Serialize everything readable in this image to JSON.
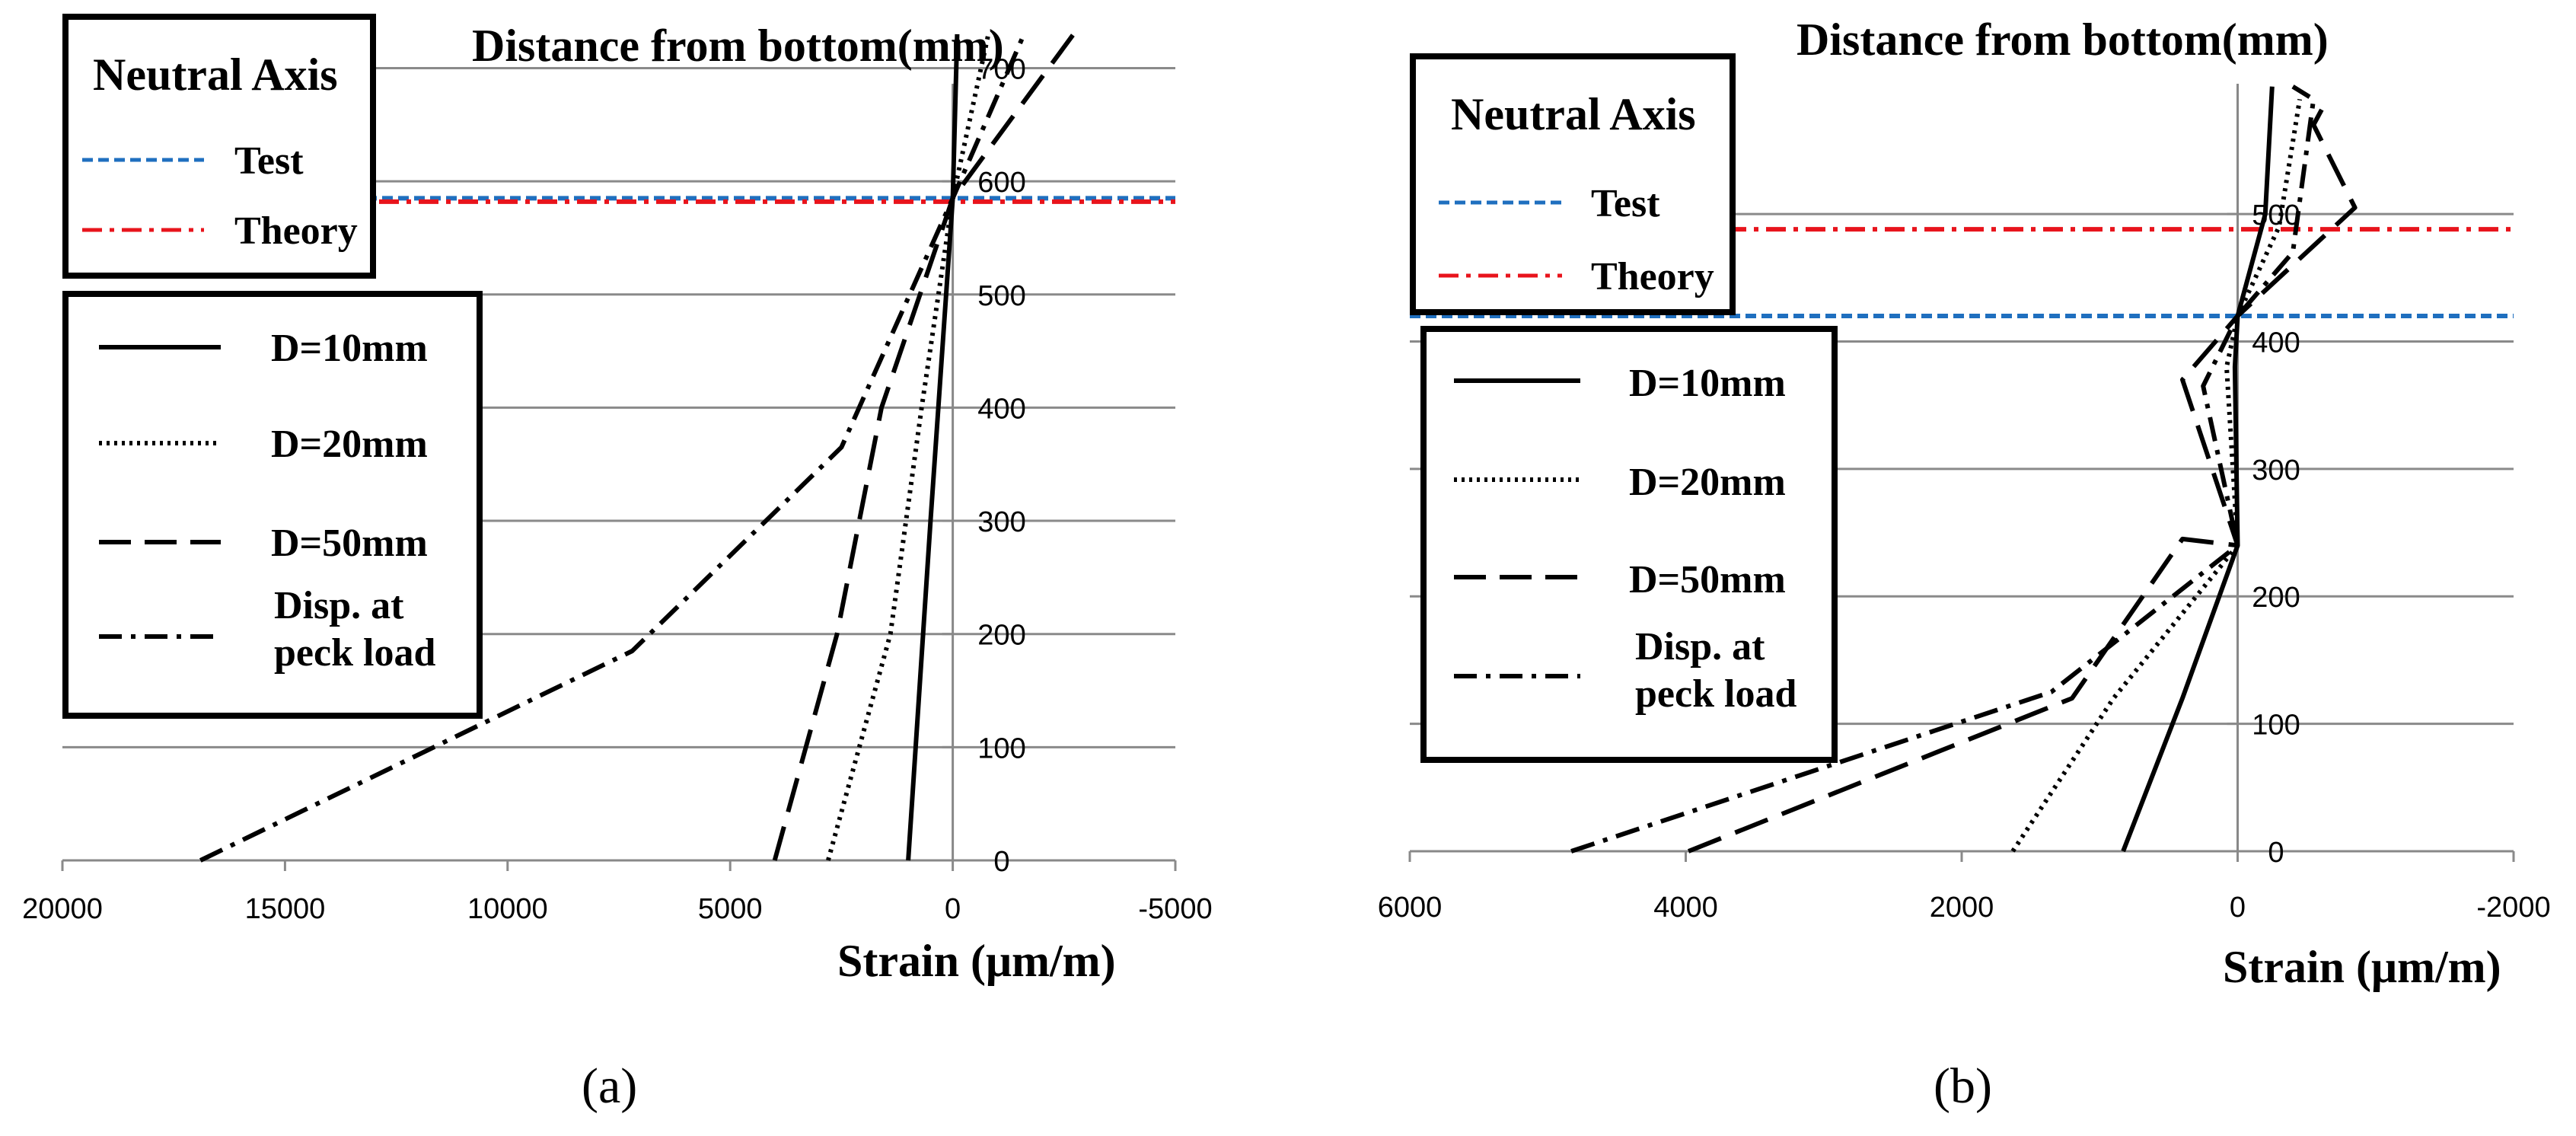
{
  "chart_data": [
    {
      "type": "line",
      "panel_label": "(a)",
      "title": "Distance from bottom(mm)",
      "xlabel": "Strain (μm/m)",
      "ylabel": "Distance from bottom(mm)",
      "xlim": [
        20000,
        -5000
      ],
      "ylim": [
        0,
        700
      ],
      "x_ticks": [
        "20000",
        "15000",
        "10000",
        "5000",
        "0",
        "-5000"
      ],
      "y_ticks": [
        "0",
        "100",
        "200",
        "300",
        "400",
        "500",
        "600",
        "700"
      ],
      "neutral_axis": {
        "title": "Neutral Axis",
        "lines": [
          {
            "name": "Test",
            "y": 585,
            "color": "#1f6fbf",
            "style": "dashed"
          },
          {
            "name": "Theory",
            "y": 582,
            "color": "#e8141c",
            "style": "dashdot"
          }
        ]
      },
      "series": [
        {
          "name": "D=10mm",
          "style": "solid",
          "points": [
            [
              1000,
              0
            ],
            [
              500,
              300
            ],
            [
              0,
              585
            ],
            [
              -100,
              730
            ]
          ]
        },
        {
          "name": "D=20mm",
          "style": "dotted",
          "points": [
            [
              2800,
              0
            ],
            [
              1400,
              200
            ],
            [
              700,
              400
            ],
            [
              0,
              585
            ],
            [
              -800,
              730
            ]
          ]
        },
        {
          "name": "D=50mm",
          "style": "dashed",
          "points": [
            [
              4000,
              0
            ],
            [
              2600,
              200
            ],
            [
              1600,
              400
            ],
            [
              0,
              585
            ],
            [
              -2900,
              740
            ]
          ]
        },
        {
          "name": "Disp. at peck load",
          "style": "dashdot",
          "points": [
            [
              16900,
              0
            ],
            [
              7200,
              185
            ],
            [
              2500,
              365
            ],
            [
              0,
              585
            ],
            [
              -1600,
              730
            ]
          ]
        }
      ]
    },
    {
      "type": "line",
      "panel_label": "(b)",
      "title": "Distance from bottom(mm)",
      "xlabel": "Strain (μm/m)",
      "ylabel": "Distance from bottom(mm)",
      "xlim": [
        6000,
        -2000
      ],
      "ylim": [
        0,
        600
      ],
      "x_ticks": [
        "6000",
        "4000",
        "2000",
        "0",
        "-2000"
      ],
      "y_ticks": [
        "0",
        "100",
        "200",
        "300",
        "400",
        "500"
      ],
      "neutral_axis": {
        "title": "Neutral Axis",
        "lines": [
          {
            "name": "Test",
            "y": 420,
            "color": "#1f6fbf",
            "style": "dashed"
          },
          {
            "name": "Theory",
            "y": 488,
            "color": "#e8141c",
            "style": "dashdot"
          }
        ]
      },
      "series": [
        {
          "name": "D=10mm",
          "style": "solid",
          "points": [
            [
              830,
              0
            ],
            [
              400,
              120
            ],
            [
              0,
              240
            ],
            [
              20,
              380
            ],
            [
              0,
              420
            ],
            [
              -200,
              500
            ],
            [
              -250,
              600
            ]
          ]
        },
        {
          "name": "D=20mm",
          "style": "dotted",
          "points": [
            [
              1630,
              0
            ],
            [
              900,
              120
            ],
            [
              0,
              240
            ],
            [
              80,
              380
            ],
            [
              0,
              420
            ],
            [
              -300,
              490
            ],
            [
              -450,
              590
            ]
          ]
        },
        {
          "name": "D=50mm",
          "style": "dashed",
          "points": [
            [
              3980,
              0
            ],
            [
              1200,
              120
            ],
            [
              400,
              245
            ],
            [
              0,
              240
            ],
            [
              400,
              370
            ],
            [
              0,
              420
            ],
            [
              -850,
              505
            ],
            [
              -550,
              570
            ],
            [
              -650,
              590
            ]
          ]
        },
        {
          "name": "Disp. at peck load",
          "style": "dashdot",
          "points": [
            [
              4830,
              0
            ],
            [
              1350,
              125
            ],
            [
              0,
              240
            ],
            [
              250,
              365
            ],
            [
              0,
              420
            ],
            [
              -400,
              470
            ],
            [
              -550,
              590
            ],
            [
              -400,
              600
            ]
          ]
        }
      ]
    }
  ]
}
